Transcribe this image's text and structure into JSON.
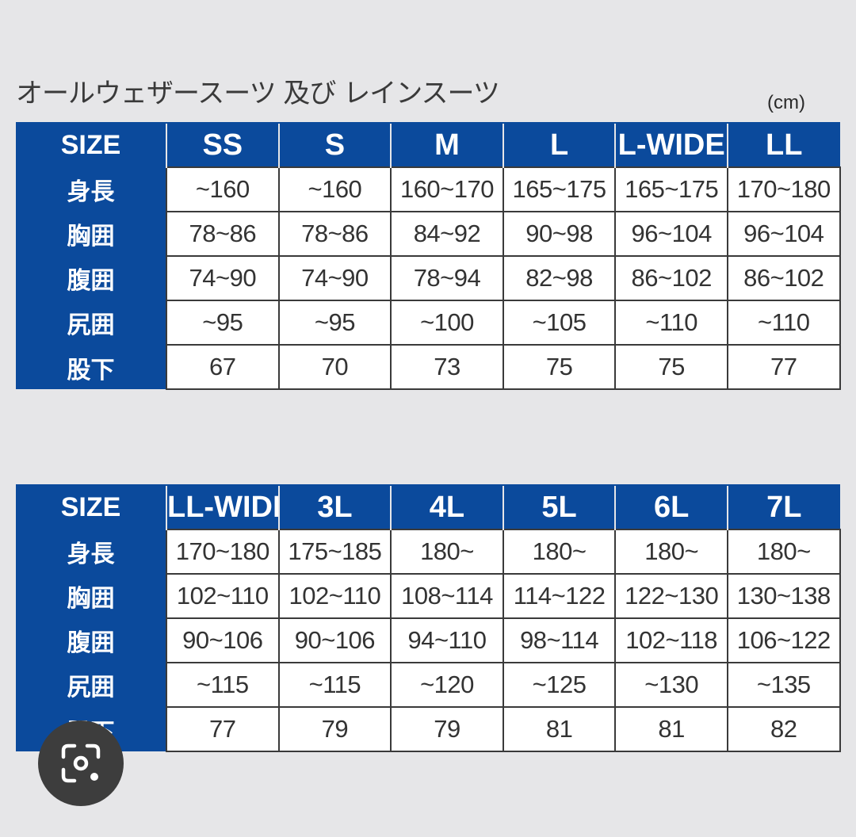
{
  "title": "オールウェザースーツ 及び レインスーツ",
  "unit": "(cm)",
  "size_label": "SIZE",
  "row_labels": [
    "身長",
    "胸囲",
    "腹囲",
    "尻囲",
    "股下"
  ],
  "tables": [
    {
      "sizes": [
        "SS",
        "S",
        "M",
        "L",
        "L-WIDE",
        "LL"
      ],
      "rows": [
        [
          "~160",
          "~160",
          "160~170",
          "165~175",
          "165~175",
          "170~180"
        ],
        [
          "78~86",
          "78~86",
          "84~92",
          "90~98",
          "96~104",
          "96~104"
        ],
        [
          "74~90",
          "74~90",
          "78~94",
          "82~98",
          "86~102",
          "86~102"
        ],
        [
          "~95",
          "~95",
          "~100",
          "~105",
          "~110",
          "~110"
        ],
        [
          "67",
          "70",
          "73",
          "75",
          "75",
          "77"
        ]
      ]
    },
    {
      "sizes": [
        "LL-WIDE",
        "3L",
        "4L",
        "5L",
        "6L",
        "7L"
      ],
      "rows": [
        [
          "170~180",
          "175~185",
          "180~",
          "180~",
          "180~",
          "180~"
        ],
        [
          "102~110",
          "102~110",
          "108~114",
          "114~122",
          "122~130",
          "130~138"
        ],
        [
          "90~106",
          "90~106",
          "94~110",
          "98~114",
          "102~118",
          "106~122"
        ],
        [
          "~115",
          "~115",
          "~120",
          "~125",
          "~130",
          "~135"
        ],
        [
          "77",
          "79",
          "79",
          "81",
          "81",
          "82"
        ]
      ]
    }
  ],
  "colors": {
    "header_blue": "#0b4a9c",
    "background": "#e6e6e8",
    "badge": "#3d3d3d"
  },
  "badge_icon": "camera-search-icon"
}
